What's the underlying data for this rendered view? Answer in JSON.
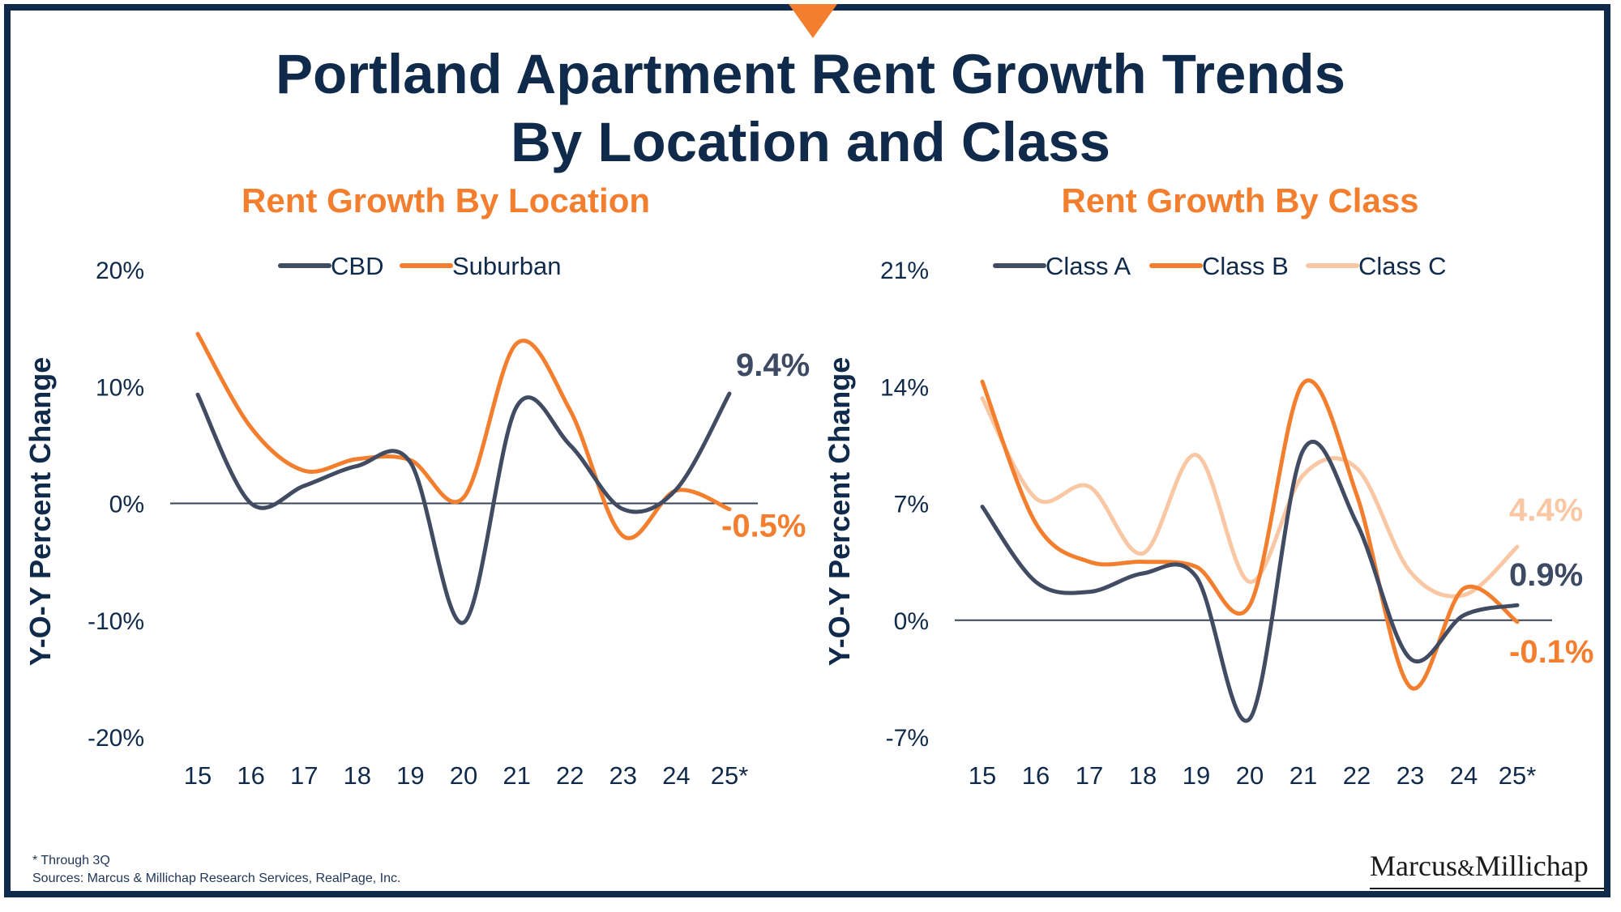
{
  "title_line1": "Portland Apartment Rent Growth Trends",
  "title_line2": "By Location and Class",
  "footnote_line1": "* Through 3Q",
  "footnote_line2": "Sources: Marcus & Millichap Research Services, RealPage, Inc.",
  "logo": {
    "text_left": "Marcus",
    "amp": "&",
    "text_right": "Millichap"
  },
  "colors": {
    "navy": "#0f2a4a",
    "orange": "#f37e2e",
    "slate": "#414c63",
    "peach": "#f9c7a3",
    "label_slate": "#3d4a63"
  },
  "chart_data": [
    {
      "type": "line",
      "title": "Rent Growth By Location",
      "ylabel": "Y-O-Y Percent Change",
      "ylim": [
        -20,
        20
      ],
      "yticks": [
        "20%",
        "10%",
        "0%",
        "-10%",
        "-20%"
      ],
      "ytick_values": [
        20,
        10,
        0,
        -10,
        -20
      ],
      "categories": [
        "15",
        "16",
        "17",
        "18",
        "19",
        "20",
        "21",
        "22",
        "23",
        "24",
        "25*"
      ],
      "legend_position": "top",
      "series": [
        {
          "name": "CBD",
          "color": "#414c63",
          "values": [
            9.3,
            0.0,
            1.5,
            3.2,
            3.5,
            -10.2,
            8.3,
            5.0,
            -0.5,
            1.2,
            9.4
          ],
          "end_label": "9.4%"
        },
        {
          "name": "Suburban",
          "color": "#f37e2e",
          "values": [
            14.5,
            6.5,
            2.8,
            3.8,
            3.7,
            0.5,
            13.7,
            8.0,
            -2.8,
            1.1,
            -0.5
          ],
          "end_label": "-0.5%"
        }
      ]
    },
    {
      "type": "line",
      "title": "Rent Growth By Class",
      "ylabel": "Y-O-Y Percent Change",
      "ylim": [
        -7,
        21
      ],
      "yticks": [
        "21%",
        "14%",
        "7%",
        "0%",
        "-7%"
      ],
      "ytick_values": [
        21,
        14,
        7,
        0,
        -7
      ],
      "categories": [
        "15",
        "16",
        "17",
        "18",
        "19",
        "20",
        "21",
        "22",
        "23",
        "24",
        "25*"
      ],
      "legend_position": "top",
      "series": [
        {
          "name": "Class A",
          "color": "#414c63",
          "values": [
            6.8,
            2.3,
            1.7,
            2.8,
            2.6,
            -5.9,
            10.2,
            5.8,
            -2.3,
            0.3,
            0.9
          ],
          "end_label": "0.9%"
        },
        {
          "name": "Class B",
          "color": "#f37e2e",
          "values": [
            14.3,
            5.8,
            3.5,
            3.5,
            3.2,
            0.9,
            14.2,
            7.5,
            -4.0,
            1.9,
            -0.1
          ],
          "end_label": "-0.1%"
        },
        {
          "name": "Class C",
          "color": "#f9c7a3",
          "values": [
            13.3,
            7.3,
            8.0,
            4.0,
            9.9,
            2.3,
            8.7,
            9.1,
            2.9,
            1.5,
            4.4
          ],
          "end_label": "4.4%"
        }
      ]
    }
  ]
}
